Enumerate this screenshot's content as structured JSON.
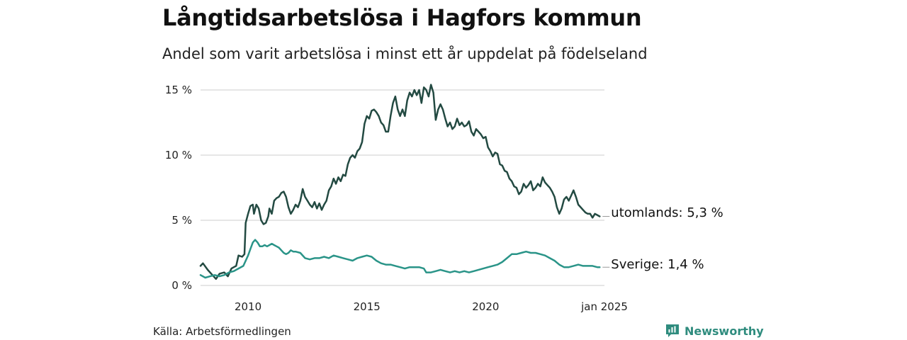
{
  "header": {
    "title": "Långtidsarbetslösa i Hagfors kommun",
    "subtitle": "Andel som varit arbetslösa i minst ett år uppdelat på födelseland"
  },
  "footer": {
    "source": "Källa: Arbetsförmedlingen",
    "brand": "Newsworthy",
    "brand_icon": "newsworthy-logo-icon"
  },
  "colors": {
    "utomlands": "#234a42",
    "sverige": "#2a9488",
    "grid": "#dddddd",
    "brand": "#2f8c7e"
  },
  "chart_data": {
    "type": "line",
    "title": "Långtidsarbetslösa i Hagfors kommun",
    "subtitle": "Andel som varit arbetslösa i minst ett år uppdelat på födelseland",
    "xlabel": "",
    "ylabel": "",
    "xlim": [
      2008.0,
      2025.0
    ],
    "ylim": [
      0,
      15
    ],
    "grid": true,
    "y_ticks": [
      {
        "value": 0,
        "label": "0 %"
      },
      {
        "value": 5,
        "label": "5 %"
      },
      {
        "value": 10,
        "label": "10 %"
      },
      {
        "value": 15,
        "label": "15 %"
      }
    ],
    "x_ticks": [
      {
        "value": 2010.0,
        "label": "2010"
      },
      {
        "value": 2015.0,
        "label": "2015"
      },
      {
        "value": 2020.0,
        "label": "2020"
      },
      {
        "value": 2025.0,
        "label": "jan 2025"
      }
    ],
    "series": [
      {
        "name": "utomlands",
        "end_label": "utomlands: 5,3 %",
        "color": "#234a42",
        "points": [
          [
            2008.0,
            1.5
          ],
          [
            2008.1,
            1.7
          ],
          [
            2008.3,
            1.2
          ],
          [
            2008.5,
            0.8
          ],
          [
            2008.65,
            0.5
          ],
          [
            2008.8,
            0.9
          ],
          [
            2009.0,
            1.0
          ],
          [
            2009.15,
            0.7
          ],
          [
            2009.3,
            1.3
          ],
          [
            2009.4,
            1.4
          ],
          [
            2009.5,
            1.5
          ],
          [
            2009.6,
            2.3
          ],
          [
            2009.75,
            2.2
          ],
          [
            2009.85,
            2.4
          ],
          [
            2009.9,
            4.8
          ],
          [
            2010.0,
            5.5
          ],
          [
            2010.1,
            6.1
          ],
          [
            2010.2,
            6.2
          ],
          [
            2010.25,
            5.5
          ],
          [
            2010.35,
            6.2
          ],
          [
            2010.45,
            5.9
          ],
          [
            2010.55,
            5.0
          ],
          [
            2010.65,
            4.7
          ],
          [
            2010.75,
            4.8
          ],
          [
            2010.85,
            5.3
          ],
          [
            2010.9,
            5.9
          ],
          [
            2011.0,
            5.5
          ],
          [
            2011.1,
            6.5
          ],
          [
            2011.2,
            6.7
          ],
          [
            2011.3,
            6.8
          ],
          [
            2011.4,
            7.1
          ],
          [
            2011.5,
            7.2
          ],
          [
            2011.6,
            6.8
          ],
          [
            2011.7,
            6.0
          ],
          [
            2011.8,
            5.5
          ],
          [
            2011.9,
            5.8
          ],
          [
            2012.0,
            6.2
          ],
          [
            2012.1,
            6.0
          ],
          [
            2012.2,
            6.5
          ],
          [
            2012.3,
            7.4
          ],
          [
            2012.4,
            6.8
          ],
          [
            2012.5,
            6.5
          ],
          [
            2012.6,
            6.2
          ],
          [
            2012.7,
            6.0
          ],
          [
            2012.8,
            6.4
          ],
          [
            2012.9,
            5.9
          ],
          [
            2013.0,
            6.3
          ],
          [
            2013.1,
            5.8
          ],
          [
            2013.2,
            6.2
          ],
          [
            2013.3,
            6.5
          ],
          [
            2013.4,
            7.3
          ],
          [
            2013.5,
            7.6
          ],
          [
            2013.6,
            8.2
          ],
          [
            2013.7,
            7.8
          ],
          [
            2013.8,
            8.3
          ],
          [
            2013.9,
            8.0
          ],
          [
            2014.0,
            8.5
          ],
          [
            2014.1,
            8.4
          ],
          [
            2014.2,
            9.3
          ],
          [
            2014.3,
            9.8
          ],
          [
            2014.4,
            10.0
          ],
          [
            2014.5,
            9.8
          ],
          [
            2014.6,
            10.3
          ],
          [
            2014.7,
            10.5
          ],
          [
            2014.8,
            11.0
          ],
          [
            2014.9,
            12.4
          ],
          [
            2015.0,
            13.0
          ],
          [
            2015.1,
            12.8
          ],
          [
            2015.2,
            13.4
          ],
          [
            2015.3,
            13.5
          ],
          [
            2015.4,
            13.3
          ],
          [
            2015.5,
            13.0
          ],
          [
            2015.6,
            12.5
          ],
          [
            2015.7,
            12.3
          ],
          [
            2015.8,
            11.8
          ],
          [
            2015.9,
            11.8
          ],
          [
            2016.0,
            13.0
          ],
          [
            2016.1,
            14.0
          ],
          [
            2016.2,
            14.5
          ],
          [
            2016.3,
            13.5
          ],
          [
            2016.4,
            13.0
          ],
          [
            2016.5,
            13.5
          ],
          [
            2016.6,
            13.0
          ],
          [
            2016.7,
            14.2
          ],
          [
            2016.8,
            14.8
          ],
          [
            2016.9,
            14.5
          ],
          [
            2017.0,
            15.0
          ],
          [
            2017.1,
            14.6
          ],
          [
            2017.2,
            15.0
          ],
          [
            2017.3,
            14.0
          ],
          [
            2017.4,
            15.2
          ],
          [
            2017.5,
            15.0
          ],
          [
            2017.6,
            14.5
          ],
          [
            2017.7,
            15.4
          ],
          [
            2017.8,
            14.8
          ],
          [
            2017.9,
            12.7
          ],
          [
            2018.0,
            13.5
          ],
          [
            2018.1,
            13.9
          ],
          [
            2018.2,
            13.5
          ],
          [
            2018.3,
            12.8
          ],
          [
            2018.4,
            12.2
          ],
          [
            2018.5,
            12.5
          ],
          [
            2018.6,
            12.0
          ],
          [
            2018.7,
            12.2
          ],
          [
            2018.8,
            12.8
          ],
          [
            2018.9,
            12.3
          ],
          [
            2019.0,
            12.5
          ],
          [
            2019.1,
            12.2
          ],
          [
            2019.2,
            12.3
          ],
          [
            2019.3,
            12.6
          ],
          [
            2019.4,
            11.8
          ],
          [
            2019.5,
            11.5
          ],
          [
            2019.6,
            12.0
          ],
          [
            2019.7,
            11.8
          ],
          [
            2019.8,
            11.6
          ],
          [
            2019.9,
            11.3
          ],
          [
            2020.0,
            11.4
          ],
          [
            2020.1,
            10.6
          ],
          [
            2020.2,
            10.3
          ],
          [
            2020.3,
            9.9
          ],
          [
            2020.4,
            10.2
          ],
          [
            2020.5,
            10.1
          ],
          [
            2020.6,
            9.3
          ],
          [
            2020.7,
            9.2
          ],
          [
            2020.8,
            8.8
          ],
          [
            2020.9,
            8.7
          ],
          [
            2021.0,
            8.2
          ],
          [
            2021.1,
            8.0
          ],
          [
            2021.2,
            7.6
          ],
          [
            2021.3,
            7.5
          ],
          [
            2021.4,
            7.0
          ],
          [
            2021.5,
            7.2
          ],
          [
            2021.6,
            7.8
          ],
          [
            2021.7,
            7.5
          ],
          [
            2021.8,
            7.7
          ],
          [
            2021.9,
            8.0
          ],
          [
            2022.0,
            7.3
          ],
          [
            2022.1,
            7.5
          ],
          [
            2022.2,
            7.8
          ],
          [
            2022.3,
            7.6
          ],
          [
            2022.4,
            8.3
          ],
          [
            2022.5,
            7.9
          ],
          [
            2022.6,
            7.7
          ],
          [
            2022.7,
            7.5
          ],
          [
            2022.8,
            7.2
          ],
          [
            2022.9,
            6.8
          ],
          [
            2023.0,
            6.0
          ],
          [
            2023.1,
            5.5
          ],
          [
            2023.2,
            5.9
          ],
          [
            2023.3,
            6.6
          ],
          [
            2023.4,
            6.8
          ],
          [
            2023.5,
            6.5
          ],
          [
            2023.6,
            6.9
          ],
          [
            2023.7,
            7.3
          ],
          [
            2023.8,
            6.8
          ],
          [
            2023.9,
            6.2
          ],
          [
            2024.0,
            6.0
          ],
          [
            2024.1,
            5.8
          ],
          [
            2024.2,
            5.6
          ],
          [
            2024.3,
            5.5
          ],
          [
            2024.4,
            5.5
          ],
          [
            2024.5,
            5.2
          ],
          [
            2024.6,
            5.5
          ],
          [
            2024.7,
            5.4
          ],
          [
            2024.8,
            5.3
          ]
        ]
      },
      {
        "name": "Sverige",
        "end_label": "Sverige: 1,4 %",
        "color": "#2a9488",
        "points": [
          [
            2008.0,
            0.8
          ],
          [
            2008.2,
            0.6
          ],
          [
            2008.4,
            0.7
          ],
          [
            2008.6,
            0.8
          ],
          [
            2008.8,
            0.7
          ],
          [
            2009.0,
            0.8
          ],
          [
            2009.2,
            1.0
          ],
          [
            2009.4,
            1.1
          ],
          [
            2009.6,
            1.3
          ],
          [
            2009.8,
            1.5
          ],
          [
            2010.0,
            2.3
          ],
          [
            2010.1,
            2.8
          ],
          [
            2010.2,
            3.3
          ],
          [
            2010.3,
            3.5
          ],
          [
            2010.4,
            3.3
          ],
          [
            2010.5,
            3.0
          ],
          [
            2010.6,
            3.0
          ],
          [
            2010.7,
            3.1
          ],
          [
            2010.8,
            3.0
          ],
          [
            2010.9,
            3.1
          ],
          [
            2011.0,
            3.2
          ],
          [
            2011.1,
            3.1
          ],
          [
            2011.2,
            3.0
          ],
          [
            2011.3,
            2.9
          ],
          [
            2011.4,
            2.7
          ],
          [
            2011.5,
            2.5
          ],
          [
            2011.6,
            2.4
          ],
          [
            2011.7,
            2.5
          ],
          [
            2011.8,
            2.7
          ],
          [
            2011.9,
            2.6
          ],
          [
            2012.0,
            2.6
          ],
          [
            2012.2,
            2.5
          ],
          [
            2012.4,
            2.1
          ],
          [
            2012.6,
            2.0
          ],
          [
            2012.8,
            2.1
          ],
          [
            2013.0,
            2.1
          ],
          [
            2013.2,
            2.2
          ],
          [
            2013.4,
            2.1
          ],
          [
            2013.6,
            2.3
          ],
          [
            2013.8,
            2.2
          ],
          [
            2014.0,
            2.1
          ],
          [
            2014.2,
            2.0
          ],
          [
            2014.4,
            1.9
          ],
          [
            2014.6,
            2.1
          ],
          [
            2014.8,
            2.2
          ],
          [
            2015.0,
            2.3
          ],
          [
            2015.2,
            2.2
          ],
          [
            2015.4,
            1.9
          ],
          [
            2015.6,
            1.7
          ],
          [
            2015.8,
            1.6
          ],
          [
            2016.0,
            1.6
          ],
          [
            2016.2,
            1.5
          ],
          [
            2016.4,
            1.4
          ],
          [
            2016.6,
            1.3
          ],
          [
            2016.8,
            1.4
          ],
          [
            2017.0,
            1.4
          ],
          [
            2017.2,
            1.4
          ],
          [
            2017.4,
            1.3
          ],
          [
            2017.5,
            1.0
          ],
          [
            2017.7,
            1.0
          ],
          [
            2017.9,
            1.1
          ],
          [
            2018.1,
            1.2
          ],
          [
            2018.3,
            1.1
          ],
          [
            2018.5,
            1.0
          ],
          [
            2018.7,
            1.1
          ],
          [
            2018.9,
            1.0
          ],
          [
            2019.1,
            1.1
          ],
          [
            2019.3,
            1.0
          ],
          [
            2019.5,
            1.1
          ],
          [
            2019.7,
            1.2
          ],
          [
            2019.9,
            1.3
          ],
          [
            2020.1,
            1.4
          ],
          [
            2020.3,
            1.5
          ],
          [
            2020.5,
            1.6
          ],
          [
            2020.7,
            1.8
          ],
          [
            2020.9,
            2.1
          ],
          [
            2021.1,
            2.4
          ],
          [
            2021.3,
            2.4
          ],
          [
            2021.5,
            2.5
          ],
          [
            2021.7,
            2.6
          ],
          [
            2021.9,
            2.5
          ],
          [
            2022.1,
            2.5
          ],
          [
            2022.3,
            2.4
          ],
          [
            2022.5,
            2.3
          ],
          [
            2022.7,
            2.1
          ],
          [
            2022.9,
            1.9
          ],
          [
            2023.1,
            1.6
          ],
          [
            2023.3,
            1.4
          ],
          [
            2023.5,
            1.4
          ],
          [
            2023.7,
            1.5
          ],
          [
            2023.9,
            1.6
          ],
          [
            2024.1,
            1.5
          ],
          [
            2024.3,
            1.5
          ],
          [
            2024.5,
            1.5
          ],
          [
            2024.7,
            1.4
          ],
          [
            2024.8,
            1.4
          ]
        ]
      }
    ]
  }
}
